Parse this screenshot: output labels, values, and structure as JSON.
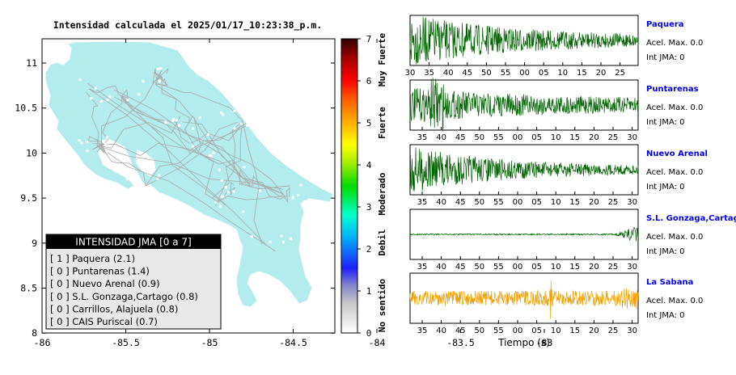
{
  "map": {
    "title": "Intensidad calculada el 2025/01/17_10:23:38_p.m.",
    "x_ticks": [
      "-86",
      "-85.5",
      "-85",
      "-84.5",
      "-84",
      "-83.5",
      "-83"
    ],
    "y_ticks": [
      "11",
      "10.5",
      "10",
      "9.5",
      "9",
      "8.5",
      "8"
    ],
    "land_color": "#b2ecec",
    "road_color": "#a9a9a9",
    "legend": {
      "header": "INTENSIDAD JMA [0 a 7]",
      "items": [
        "[ 1 ] Paquera (2.1)",
        "[ 0 ] Puntarenas (1.4)",
        "[ 0 ] Nuevo Arenal (0.9)",
        "[ 0 ] S.L. Gonzaga,Cartago (0.8)",
        "[ 0 ] Carrillos, Alajuela (0.8)",
        "[ 0 ] CAIS Puriscal (0.7)"
      ]
    }
  },
  "colorbar": {
    "ticks": [
      "7",
      "6",
      "5",
      "4",
      "3",
      "2",
      "1",
      "0"
    ],
    "labels": [
      "Muy Fuerte",
      "Fuerte",
      "Moderado",
      "Debil",
      "No sentido"
    ]
  },
  "seismograms": {
    "xlabel": "Tiempo (s)",
    "panels": [
      {
        "name": "Paquera",
        "accel": "Acel. Max. 0.0",
        "int": "Int JMA: 0",
        "ticks": [
          "30",
          "35",
          "40",
          "45",
          "50",
          "55",
          "00",
          "05",
          "10",
          "15",
          "20",
          "25"
        ],
        "color": "#006400"
      },
      {
        "name": "Puntarenas",
        "accel": "Acel. Max. 0.0",
        "int": "Int JMA: 0",
        "ticks": [
          "35",
          "40",
          "45",
          "50",
          "55",
          "00",
          "05",
          "10",
          "15",
          "20",
          "25",
          "30"
        ],
        "color": "#006400"
      },
      {
        "name": "Nuevo Arenal",
        "accel": "Acel. Max. 0.0",
        "int": "Int JMA: 0",
        "ticks": [
          "35",
          "40",
          "45",
          "50",
          "55",
          "00",
          "05",
          "10",
          "15",
          "20",
          "25",
          "30"
        ],
        "color": "#006400"
      },
      {
        "name": "S.L. Gonzaga,Cartago",
        "accel": "Acel. Max. 0.0",
        "int": "Int JMA: 0",
        "ticks": [
          "35",
          "40",
          "45",
          "50",
          "55",
          "00",
          "05",
          "10",
          "15",
          "20",
          "25",
          "30"
        ],
        "color": "#006400"
      },
      {
        "name": "La Sabana",
        "accel": "Acel. Max. 0.0",
        "int": "Int JMA: 0",
        "ticks": [
          "35",
          "40",
          "45",
          "50",
          "55",
          "00",
          "05",
          "10",
          "15",
          "20",
          "25",
          "30"
        ],
        "color": "#f0a000"
      }
    ]
  },
  "chart_data": [
    {
      "type": "map",
      "title": "Intensidad calculada el 2025/01/17_10:23:38_p.m.",
      "xlim": [
        -86,
        -82.6
      ],
      "ylim": [
        8,
        11.3
      ],
      "legend": [
        "Paquera (2.1)",
        "Puntarenas (1.4)",
        "Nuevo Arenal (0.9)",
        "S.L. Gonzaga,Cartago (0.8)",
        "Carrillos, Alajuela (0.8)",
        "CAIS Puriscal (0.7)"
      ],
      "stations": [
        {
          "name": "Paquera",
          "intensity_class": 1,
          "value": 2.1
        },
        {
          "name": "Puntarenas",
          "intensity_class": 0,
          "value": 1.4
        },
        {
          "name": "Nuevo Arenal",
          "intensity_class": 0,
          "value": 0.9
        },
        {
          "name": "S.L. Gonzaga,Cartago",
          "intensity_class": 0,
          "value": 0.8
        },
        {
          "name": "Carrillos, Alajuela",
          "intensity_class": 0,
          "value": 0.8
        },
        {
          "name": "CAIS Puriscal",
          "intensity_class": 0,
          "value": 0.7
        }
      ]
    },
    {
      "type": "line",
      "xlabel": "Tiempo (s)",
      "series": [
        {
          "name": "Paquera",
          "peak_accel": 0.0,
          "jma_intensity": 0
        },
        {
          "name": "Puntarenas",
          "peak_accel": 0.0,
          "jma_intensity": 0
        },
        {
          "name": "Nuevo Arenal",
          "peak_accel": 0.0,
          "jma_intensity": 0
        },
        {
          "name": "S.L. Gonzaga,Cartago",
          "peak_accel": 0.0,
          "jma_intensity": 0
        },
        {
          "name": "La Sabana",
          "peak_accel": 0.0,
          "jma_intensity": 0
        }
      ]
    }
  ]
}
